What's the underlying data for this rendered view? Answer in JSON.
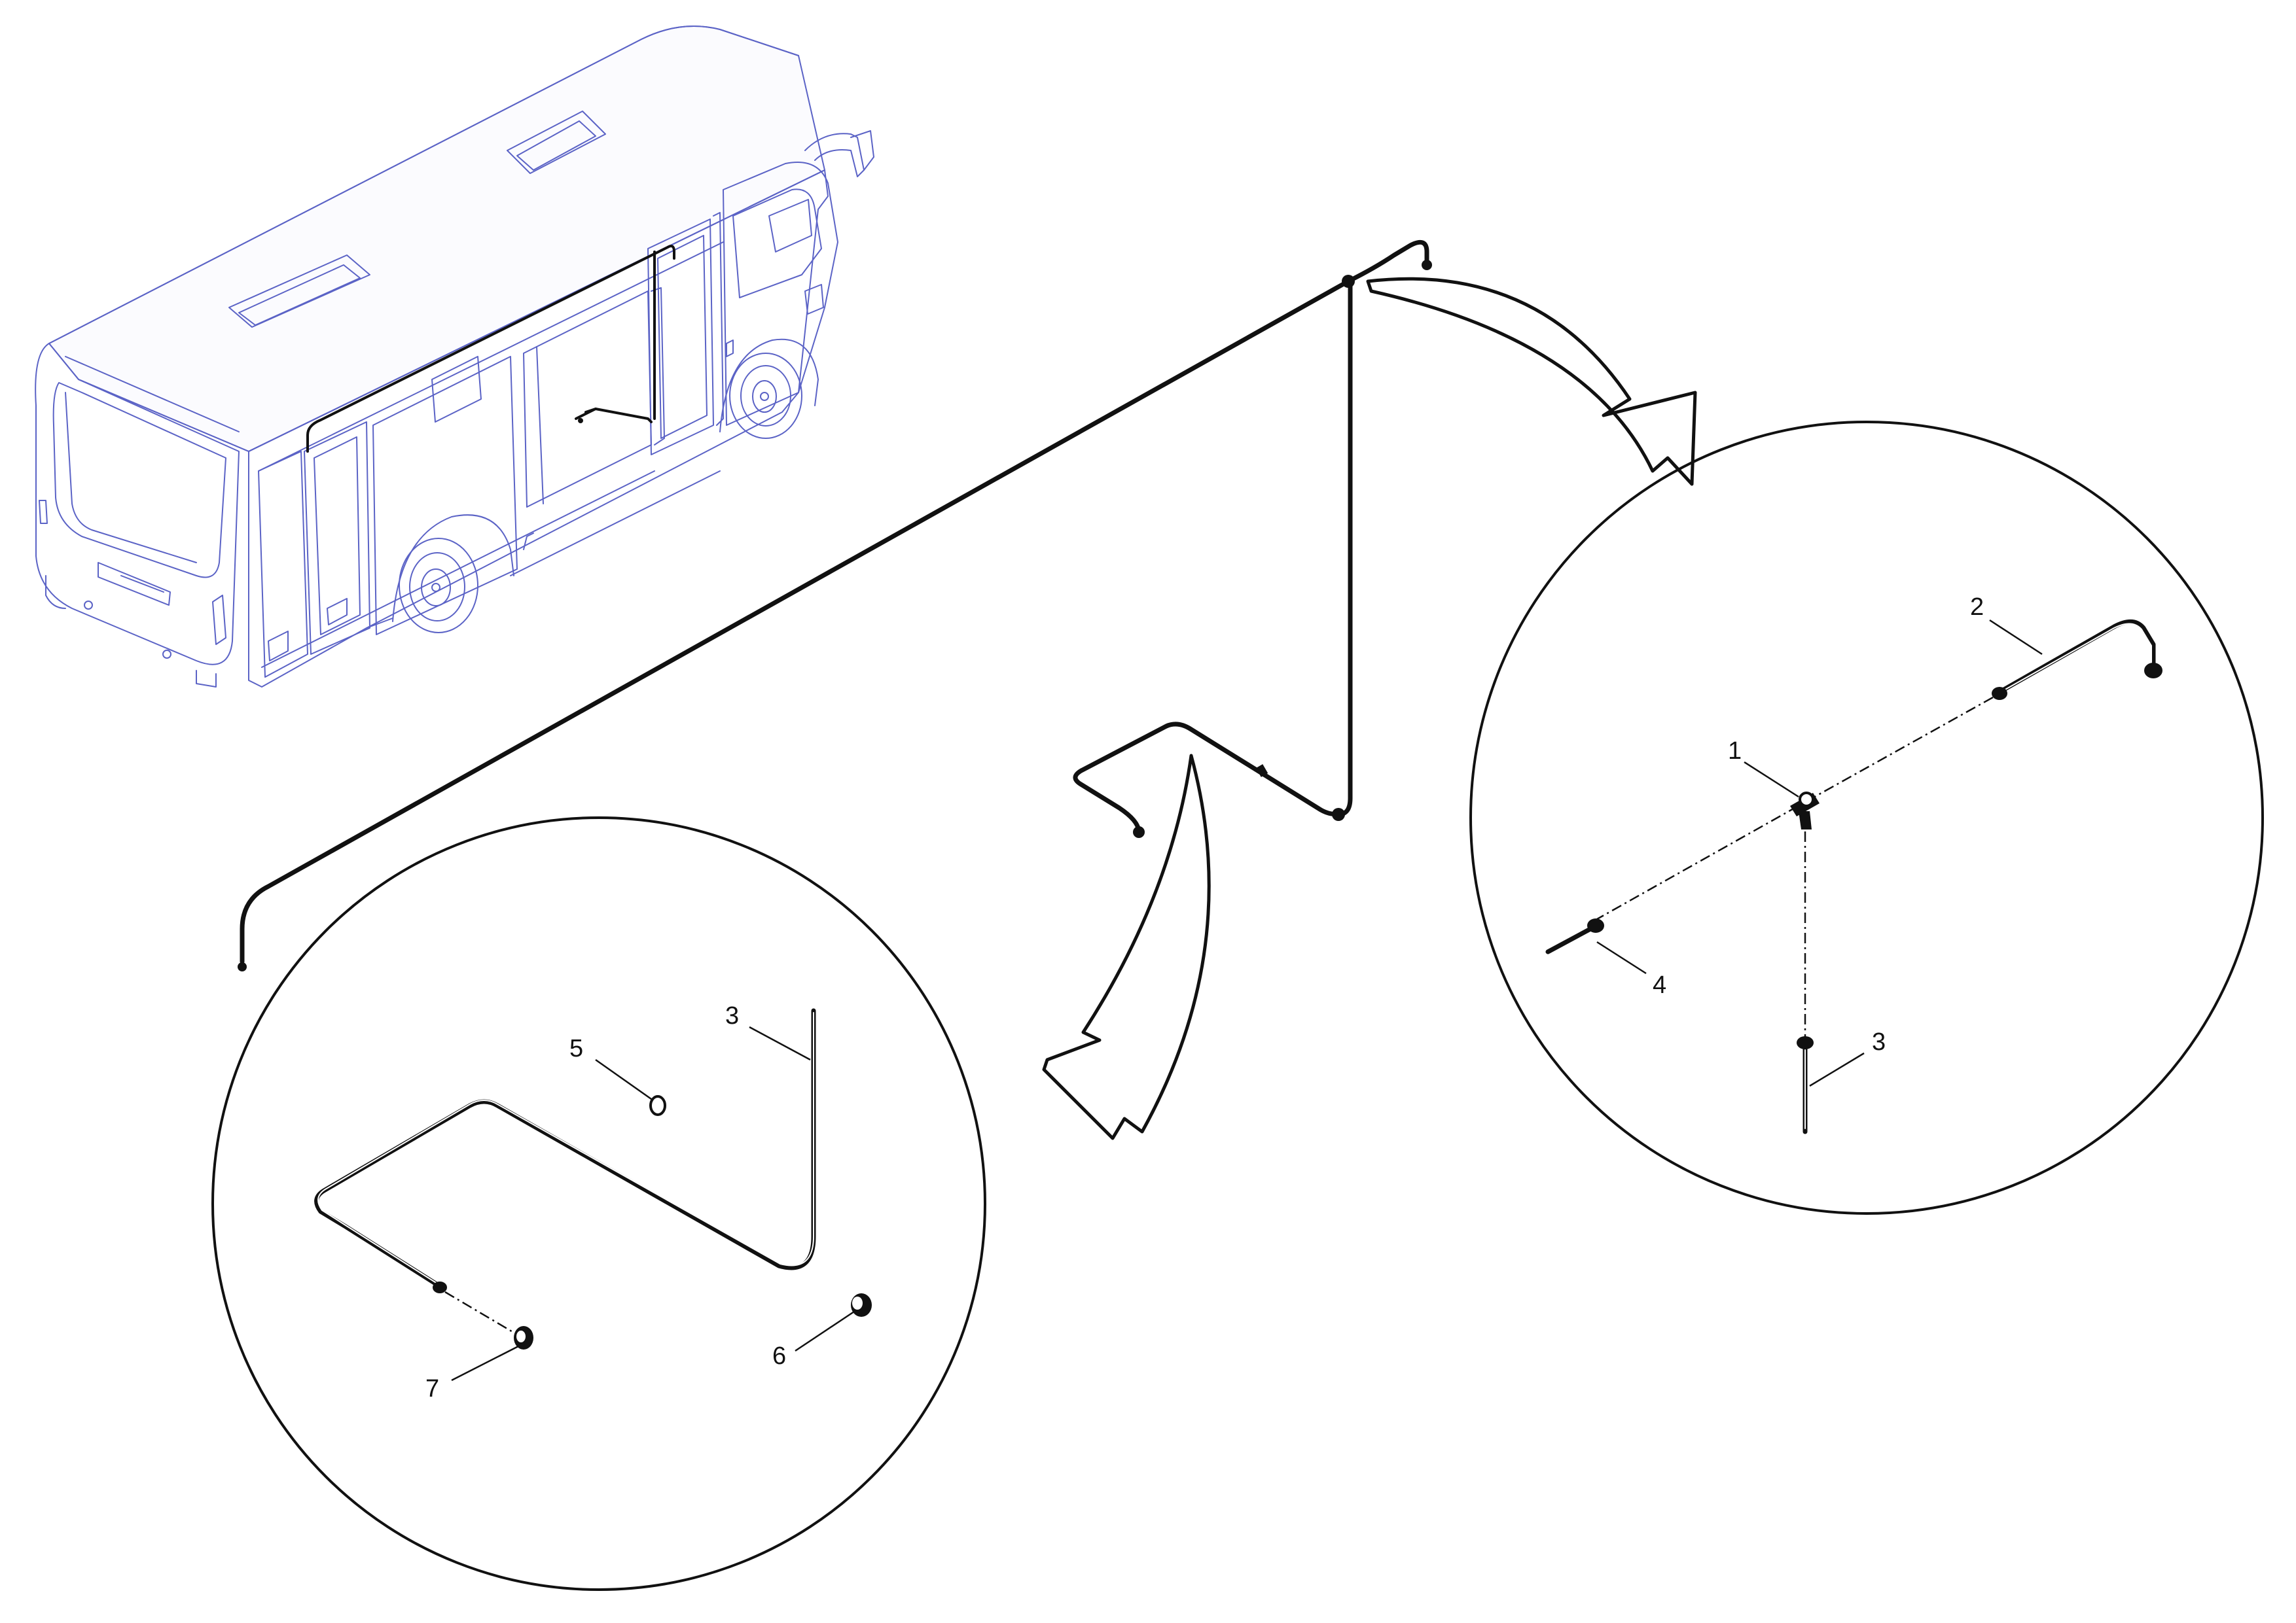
{
  "colors": {
    "bus_outline": "#5b63c6",
    "line": "#111111",
    "background": "#ffffff"
  },
  "callouts": {
    "detail_a": [
      {
        "id": "1",
        "text": "1"
      },
      {
        "id": "2",
        "text": "2"
      },
      {
        "id": "3",
        "text": "3"
      },
      {
        "id": "4",
        "text": "4"
      }
    ],
    "detail_b": [
      {
        "id": "3",
        "text": "3"
      },
      {
        "id": "5",
        "text": "5"
      },
      {
        "id": "6",
        "text": "6"
      },
      {
        "id": "7",
        "text": "7"
      }
    ]
  }
}
